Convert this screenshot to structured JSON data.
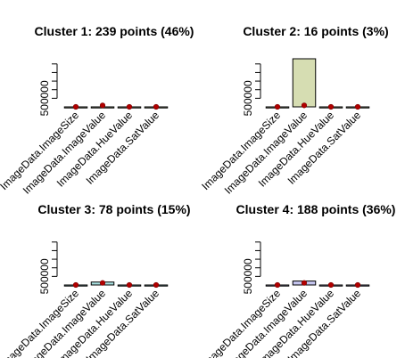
{
  "chart_data": [
    {
      "type": "bar",
      "title": "Cluster 1: 239 points (46%)",
      "categories": [
        "ImageData.ImageSize",
        "ImageData.ImageValue",
        "ImageData.HueValue",
        "ImageData.SatValue"
      ],
      "values": [
        0,
        0,
        0,
        0
      ],
      "points": [
        0,
        85000,
        0,
        0
      ],
      "y_tick_labels": [
        "500000"
      ],
      "y_ticks": [
        500000,
        1000000,
        1500000,
        2000000,
        2500000
      ],
      "ylim": [
        0,
        2800000
      ],
      "bar_color": "#d6ddb2"
    },
    {
      "type": "bar",
      "title": "Cluster 2: 16 points (3%)",
      "categories": [
        "ImageData.ImageSize",
        "ImageData.ImageValue",
        "ImageData.HueValue",
        "ImageData.SatValue"
      ],
      "values": [
        0,
        2800000,
        0,
        0
      ],
      "points": [
        0,
        85000,
        0,
        0
      ],
      "y_tick_labels": [
        "500000"
      ],
      "y_ticks": [
        500000,
        1000000,
        1500000,
        2000000,
        2500000
      ],
      "ylim": [
        0,
        2800000
      ],
      "bar_color": "#d6ddb2"
    },
    {
      "type": "bar",
      "title": "Cluster 3: 78 points (15%)",
      "categories": [
        "ImageData.ImageSize",
        "ImageData.ImageValue",
        "ImageData.HueValue",
        "ImageData.SatValue"
      ],
      "values": [
        0,
        170000,
        0,
        0
      ],
      "points": [
        0,
        120000,
        0,
        0
      ],
      "y_tick_labels": [
        "500000"
      ],
      "y_ticks": [
        500000,
        1000000,
        1500000,
        2000000,
        2500000
      ],
      "ylim": [
        0,
        2800000
      ],
      "bar_color": "#a8e0e0"
    },
    {
      "type": "bar",
      "title": "Cluster 4: 188 points (36%)",
      "categories": [
        "ImageData.ImageSize",
        "ImageData.ImageValue",
        "ImageData.HueValue",
        "ImageData.SatValue"
      ],
      "values": [
        0,
        230000,
        0,
        0
      ],
      "points": [
        0,
        120000,
        0,
        0
      ],
      "y_tick_labels": [
        "500000"
      ],
      "y_ticks": [
        500000,
        1000000,
        1500000,
        2000000,
        2500000
      ],
      "ylim": [
        0,
        2800000
      ],
      "bar_color": "#c4c4ee"
    }
  ]
}
